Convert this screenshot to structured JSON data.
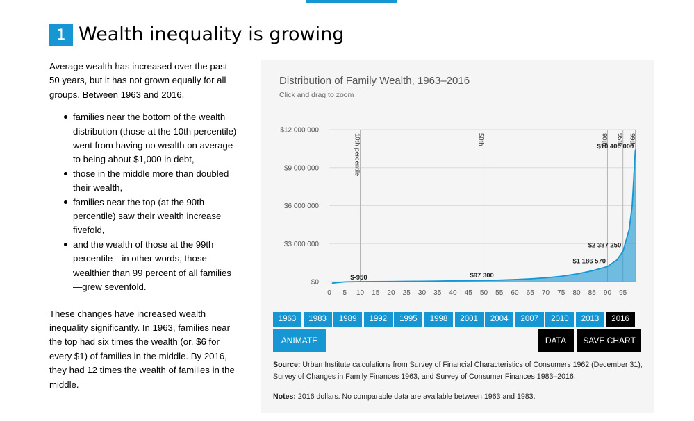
{
  "section": {
    "number": "1",
    "title": "Wealth inequality is growing"
  },
  "intro": "Average wealth has increased over the past 50 years, but it has not grown equally for all groups. Between 1963 and 2016,",
  "bullets": [
    "families near the bottom of the wealth distribution (those at the 10th percentile) went from having no wealth on average to being about $1,000 in debt,",
    "those in the middle more than doubled their wealth,",
    "families near the top (at the 90th percentile) saw their wealth increase fivefold,",
    "and the wealth of those at the 99th percentile—in other words, those wealthier than 99 percent of all families—grew sevenfold."
  ],
  "outro": "These changes have increased wealth inequality significantly. In 1963, families near the top had six times the wealth (or, $6 for every $1) of families in the middle. By 2016, they had 12 times the wealth of families in the middle.",
  "chart": {
    "title": "Distribution of Family Wealth, 1963–2016",
    "subtitle": "Click and drag to zoom",
    "years": [
      "1963",
      "1983",
      "1989",
      "1992",
      "1995",
      "1998",
      "2001",
      "2004",
      "2007",
      "2010",
      "2013",
      "2016"
    ],
    "active_year": "2016",
    "animate_label": "ANIMATE",
    "data_label": "DATA",
    "save_label": "SAVE CHART",
    "source_label": "Source:",
    "source_text": "Urban Institute calculations from Survey of Financial Characteristics of Consumers 1962 (December 31), Survey of Changes in Family Finances 1963, and Survey of Consumer Finances 1983–2016.",
    "notes_label": "Notes:",
    "notes_text": "2016 dollars. No comparable data are available between 1963 and 1983.",
    "accent_color": "#1696d2",
    "panel_color": "#f5f5f5"
  },
  "chart_data": {
    "type": "area",
    "title": "Distribution of Family Wealth, 1963–2016",
    "subtitle": "Click and drag to zoom",
    "xlabel": "",
    "ylabel": "",
    "xlim": [
      0,
      99
    ],
    "ylim": [
      0,
      12000000
    ],
    "x_ticks": [
      0,
      5,
      10,
      15,
      20,
      25,
      30,
      35,
      40,
      45,
      50,
      55,
      60,
      65,
      70,
      75,
      80,
      85,
      90,
      95
    ],
    "y_ticks": [
      0,
      3000000,
      6000000,
      9000000,
      12000000
    ],
    "y_tick_labels": [
      "$0",
      "$3 000 000",
      "$6 000 000",
      "$9 000 000",
      "$12 000 000"
    ],
    "grid": "horizontal",
    "x": [
      1,
      5,
      10,
      15,
      20,
      25,
      30,
      35,
      40,
      45,
      50,
      55,
      60,
      65,
      70,
      75,
      80,
      85,
      90,
      93,
      95,
      97,
      98,
      99
    ],
    "values": [
      -120000,
      -20000,
      -950,
      6000,
      14000,
      24000,
      36000,
      50000,
      65000,
      80000,
      97300,
      120000,
      160000,
      220000,
      300000,
      420000,
      600000,
      850000,
      1186570,
      1700000,
      2387250,
      4100000,
      6000000,
      10400000
    ],
    "reference_lines": [
      {
        "x": 10,
        "label": "10th percentile"
      },
      {
        "x": 50,
        "label": "50th"
      },
      {
        "x": 90,
        "label": "90th"
      },
      {
        "x": 95,
        "label": "95th"
      },
      {
        "x": 99,
        "label": "99th"
      }
    ],
    "data_labels": [
      {
        "x": 10,
        "y": -950,
        "label": "$-950"
      },
      {
        "x": 50,
        "y": 97300,
        "label": "$97 300"
      },
      {
        "x": 90,
        "y": 1186570,
        "label": "$1 186 570"
      },
      {
        "x": 95,
        "y": 2387250,
        "label": "$2 387 250"
      },
      {
        "x": 99,
        "y": 10400000,
        "label": "$10 400 000"
      }
    ]
  }
}
